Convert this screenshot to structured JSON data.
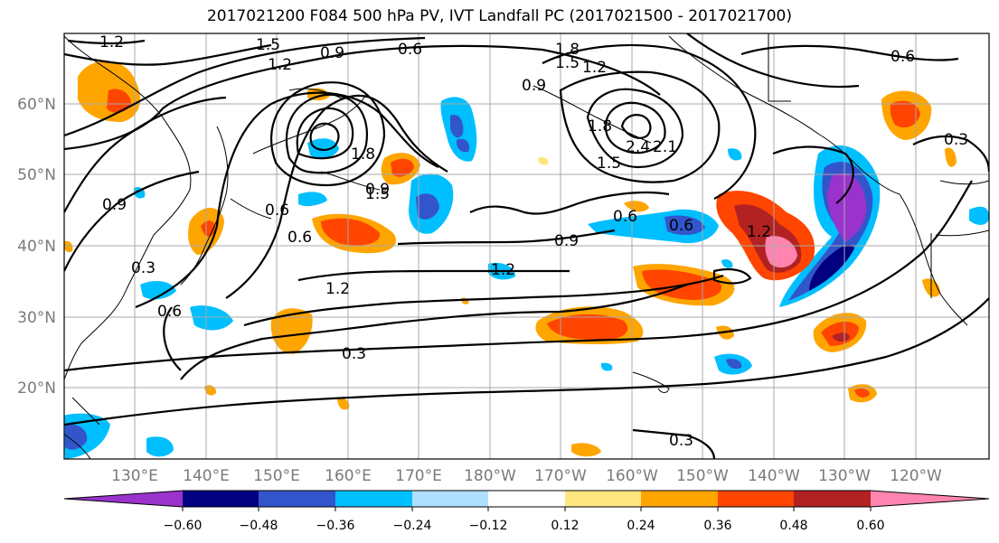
{
  "title": "2017021200 F084 500 hPa PV, IVT Landfall PC (2017021500 - 2017021700)",
  "latitude_labels": [
    "60°N",
    "50°N",
    "40°N",
    "30°N",
    "20°N"
  ],
  "longitude_labels": [
    "130°E",
    "140°E",
    "150°E",
    "160°E",
    "170°E",
    "180°W",
    "170°W",
    "160°W",
    "150°W",
    "140°W",
    "130°W",
    "120°W"
  ],
  "contour_labels": [
    "1.2",
    "1.5",
    "1.2",
    "0.9",
    "0.6",
    "1.8",
    "1.5",
    "1.2",
    "0.9",
    "0.6",
    "0.3",
    "0.9",
    "0.6",
    "0.9",
    "0.6",
    "0.3",
    "0.6",
    "1.2",
    "1.2",
    "0.3",
    "0.9",
    "0.6",
    "0.6",
    "1.2",
    "0.3",
    "1.8",
    "2.4",
    "2.1",
    "1.5",
    "1.8",
    "1.5"
  ],
  "colorbar": {
    "ticks": [
      "−0.60",
      "−0.48",
      "−0.36",
      "−0.24",
      "−0.12",
      "0.12",
      "0.24",
      "0.36",
      "0.48",
      "0.60"
    ],
    "colors": [
      "#9933cc",
      "#000080",
      "#3355cc",
      "#00bfff",
      "#b0e0ff",
      "#ffffff",
      "#ffe680",
      "#ffa500",
      "#ff4500",
      "#b22222",
      "#ff85b0",
      "#ff85b0"
    ]
  }
}
